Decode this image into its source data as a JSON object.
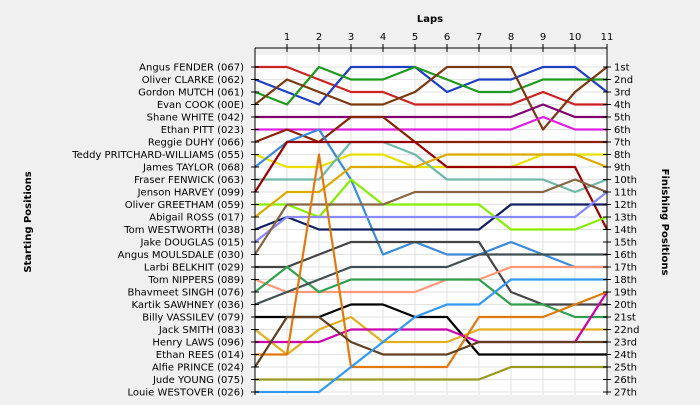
{
  "chart_data": {
    "type": "line",
    "title": "",
    "top_axis_label": "Laps",
    "left_axis_label": "Starting Positions",
    "right_axis_label": "Finishing Positions",
    "x": [
      0,
      1,
      2,
      3,
      4,
      5,
      6,
      7,
      8,
      9,
      10,
      11
    ],
    "x_ticks": [
      "1",
      "2",
      "3",
      "4",
      "5",
      "6",
      "7",
      "8",
      "9",
      "10",
      "11"
    ],
    "finishing_labels": [
      "1st",
      "2nd",
      "3rd",
      "4th",
      "5th",
      "6th",
      "7th",
      "8th",
      "9th",
      "10th",
      "11th",
      "12th",
      "13th",
      "14th",
      "15th",
      "16th",
      "17th",
      "18th",
      "19th",
      "20th",
      "21st",
      "22nd",
      "23rd",
      "24th",
      "25th",
      "26th",
      "27th"
    ],
    "y_reversed": true,
    "ylim": [
      1,
      27
    ],
    "grid": true,
    "retired_marker": "x",
    "series": [
      {
        "name": "Angus FENDER (067)",
        "color": "#cc2222",
        "positions": [
          1,
          1,
          2,
          3,
          3,
          4,
          4,
          4,
          4,
          3,
          4,
          4
        ]
      },
      {
        "name": "Oliver CLARKE (062)",
        "color": "#1f3fbf",
        "positions": [
          2,
          3,
          4,
          1,
          1,
          1,
          3,
          2,
          2,
          1,
          1,
          3
        ]
      },
      {
        "name": "Gordon MUTCH (061)",
        "color": "#1e9b1e",
        "positions": [
          3,
          4,
          1,
          2,
          2,
          1,
          2,
          3,
          3,
          2,
          2,
          2
        ]
      },
      {
        "name": "Evan COOK (00E)",
        "color": "#7a3a10",
        "positions": [
          4,
          2,
          3,
          4,
          4,
          3,
          1,
          1,
          1,
          6,
          3,
          1
        ]
      },
      {
        "name": "Shane WHITE (042)",
        "color": "#800070",
        "positions": [
          5,
          5,
          5,
          5,
          5,
          5,
          5,
          5,
          5,
          4,
          5,
          5
        ]
      },
      {
        "name": "Ethan PITT (023)",
        "color": "#e020e0",
        "positions": [
          6,
          6,
          6,
          6,
          6,
          6,
          6,
          6,
          6,
          5,
          6,
          6
        ]
      },
      {
        "name": "Reggie DUHY (066)",
        "color": "#882200",
        "positions": [
          7,
          6,
          7,
          5,
          5,
          7,
          7,
          7,
          7,
          7,
          7,
          7
        ]
      },
      {
        "name": "Teddy PRITCHARD-WILLIAMS (055)",
        "color": "#e8e000",
        "positions": [
          8,
          9,
          9,
          8,
          8,
          9,
          9,
          9,
          9,
          8,
          8,
          8
        ]
      },
      {
        "name": "James TAYLOR (068)",
        "color": "#3a8ad8",
        "positions": [
          9,
          7,
          6,
          10,
          16,
          15,
          16,
          16,
          15,
          16,
          17,
          17
        ]
      },
      {
        "name": "Fraser FENWICK (063)",
        "color": "#70b8a8",
        "positions": [
          10,
          10,
          10,
          7,
          7,
          8,
          10,
          10,
          10,
          10,
          11,
          10
        ]
      },
      {
        "name": "Jenson HARVEY (099)",
        "color": "#990000",
        "positions": [
          11,
          7,
          7,
          7,
          7,
          7,
          9,
          9,
          9,
          9,
          9,
          14
        ]
      },
      {
        "name": "Oliver GREETHAM (059)",
        "color": "#88ee00",
        "positions": [
          12,
          12,
          13,
          10,
          12,
          12,
          12,
          12,
          14,
          14,
          14,
          13
        ]
      },
      {
        "name": "Abigail ROSS (017)",
        "color": "#ddaa00",
        "positions": [
          13,
          11,
          11,
          9,
          9,
          9,
          8,
          8,
          8,
          8,
          8,
          9
        ]
      },
      {
        "name": "Tom WESTWORTH (038)",
        "color": "#102060",
        "positions": [
          14,
          13,
          14,
          14,
          14,
          14,
          14,
          14,
          12,
          12,
          12,
          12
        ]
      },
      {
        "name": "Jake DOUGLAS (015)",
        "color": "#8888ff",
        "positions": [
          15,
          13,
          13,
          13,
          13,
          13,
          13,
          13,
          13,
          13,
          13,
          11
        ]
      },
      {
        "name": "Angus MOULSDALE (030)",
        "color": "#886644",
        "positions": [
          16,
          12,
          12,
          12,
          12,
          11,
          11,
          11,
          11,
          11,
          10,
          11
        ]
      },
      {
        "name": "Larbi BELKHIT (029)",
        "color": "#444444",
        "positions": [
          17,
          17,
          16,
          15,
          15,
          15,
          15,
          15,
          19,
          20,
          20,
          20
        ]
      },
      {
        "name": "Tom NIPPERS (089)",
        "color": "#ff9977",
        "positions": [
          18,
          19,
          19,
          19,
          19,
          19,
          18,
          18,
          17,
          17,
          17,
          17
        ]
      },
      {
        "name": "Bhavmeet SINGH (076)",
        "color": "#30a050",
        "positions": [
          19,
          17,
          19,
          18,
          18,
          18,
          18,
          18,
          20,
          20,
          21,
          21
        ]
      },
      {
        "name": "Kartik SAWHNEY (036)",
        "color": "#405050",
        "positions": [
          20,
          19,
          18,
          17,
          17,
          17,
          17,
          16,
          16,
          16,
          16,
          16
        ]
      },
      {
        "name": "Billy VASSILEV (079)",
        "color": "#000000",
        "positions": [
          21,
          21,
          21,
          20,
          20,
          21,
          21,
          24,
          24,
          24,
          24,
          24
        ]
      },
      {
        "name": "Jack SMITH (083)",
        "color": "#e0b020",
        "positions": [
          22,
          24,
          22,
          21,
          23,
          23,
          23,
          22,
          22,
          22,
          22,
          22
        ]
      },
      {
        "name": "Henry LAWS (096)",
        "color": "#cc00aa",
        "positions": [
          23,
          23,
          23,
          22,
          22,
          22,
          22,
          23,
          23,
          23,
          23,
          19
        ]
      },
      {
        "name": "Ethan REES (014)",
        "color": "#e07a10",
        "positions": [
          24,
          24,
          8,
          25,
          25,
          25,
          25,
          21,
          21,
          21,
          20,
          19
        ]
      },
      {
        "name": "Alfie PRINCE (024)",
        "color": "#604020",
        "positions": [
          25,
          21,
          21,
          23,
          24,
          24,
          24,
          23,
          23,
          23,
          23,
          23
        ]
      },
      {
        "name": "Jude YOUNG (075)",
        "color": "#9a9a20",
        "positions": [
          26,
          26,
          26,
          26,
          26,
          26,
          26,
          26,
          25,
          25,
          25,
          25
        ]
      },
      {
        "name": "Louie WESTOVER (026)",
        "color": "#3399ee",
        "positions": [
          27,
          27,
          27,
          25,
          23,
          21,
          20,
          20,
          18,
          18,
          18,
          18
        ]
      }
    ]
  }
}
